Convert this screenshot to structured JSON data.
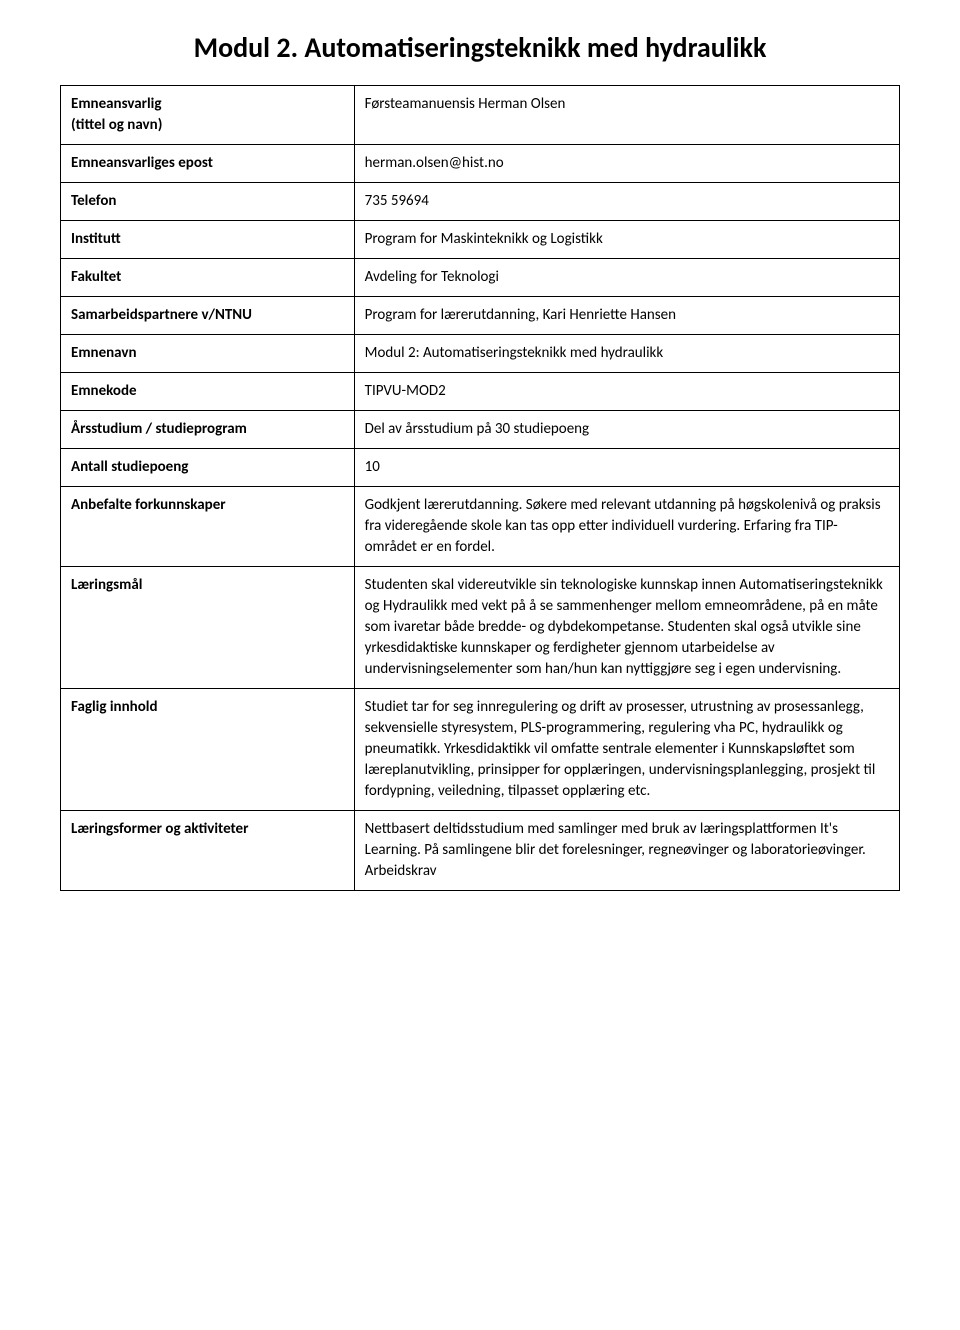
{
  "title": "Modul 2. Automatiseringsteknikk med hydraulikk",
  "rows": [
    {
      "label": "Emneansvarlig\n(tittel og navn)",
      "value": "Førsteamanuensis Herman Olsen"
    },
    {
      "label": "Emneansvarliges epost",
      "value": "herman.olsen@hist.no"
    },
    {
      "label": "Telefon",
      "value": "735 59694"
    },
    {
      "label": "Institutt",
      "value": "Program for Maskinteknikk og Logistikk"
    },
    {
      "label": "Fakultet",
      "value": "Avdeling for Teknologi"
    },
    {
      "label": "Samarbeidspartnere v/NTNU",
      "value": "Program for lærerutdanning, Kari Henriette Hansen"
    },
    {
      "label": "Emnenavn",
      "value": "Modul 2: Automatiseringsteknikk med hydraulikk"
    },
    {
      "label": "Emnekode",
      "value": "TIPVU-MOD2"
    },
    {
      "label": "Årsstudium / studieprogram",
      "value": "Del av årsstudium på 30 studiepoeng"
    },
    {
      "label": "Antall studiepoeng",
      "value": "10"
    },
    {
      "label": "Anbefalte forkunnskaper",
      "value": "Godkjent lærerutdanning. Søkere med relevant utdanning på høgskolenivå og praksis fra videregående skole kan tas opp etter individuell vurdering. Erfaring fra TIP-området er en fordel."
    },
    {
      "label": "Læringsmål",
      "value": "Studenten skal videreutvikle sin teknologiske kunnskap innen Automatiseringsteknikk og Hydraulikk med vekt på å se sammenhenger mellom emneområdene, på en måte som ivaretar både bredde- og dybdekompetanse. Studenten skal også utvikle sine yrkesdidaktiske kunnskaper og ferdigheter gjennom utarbeidelse av undervisningselementer som han/hun kan nyttiggjøre seg i egen undervisning."
    },
    {
      "label": "Faglig innhold",
      "value": "Studiet tar for seg innregulering og drift av prosesser, utrustning av prosessanlegg, sekvensielle styresystem, PLS-programmering, regulering vha PC, hydraulikk og pneumatikk. Yrkesdidaktikk vil omfatte sentrale elementer i Kunnskapsløftet som læreplanutvikling, prinsipper for opplæringen, undervisningsplanlegging, prosjekt til fordypning, veiledning, tilpasset opplæring etc."
    },
    {
      "label": "Læringsformer og aktiviteter",
      "value": "Nettbasert deltidsstudium med samlinger med bruk av læringsplattformen It's Learning. På samlingene blir det forelesninger, regneøvinger og laboratorieøvinger. Arbeidskrav"
    }
  ],
  "colors": {
    "background": "#ffffff",
    "text": "#000000",
    "border": "#000000"
  },
  "typography": {
    "title_fontsize": 28,
    "title_fontweight": "bold",
    "cell_fontsize": 15,
    "label_fontweight": "bold",
    "font_family": "Calibri"
  },
  "layout": {
    "label_col_width_pct": 35,
    "value_col_width_pct": 65,
    "row_multiline_0": true
  }
}
